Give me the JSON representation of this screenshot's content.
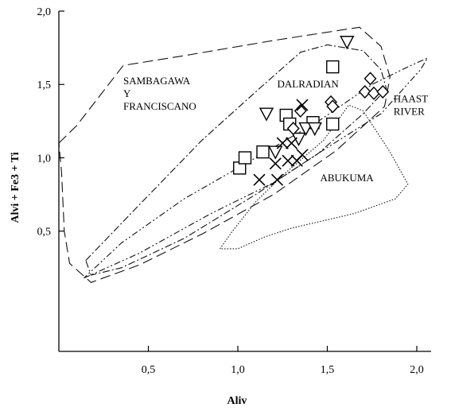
{
  "chart_data": {
    "type": "scatter",
    "xlabel": "Aliv",
    "ylabel": "Alvi + Fe3 + Ti",
    "xlim": [
      0,
      2.08
    ],
    "ylim": [
      -0.32,
      2.0
    ],
    "grid": false,
    "x_ticks": [
      {
        "value": 0.5,
        "label": "0,5"
      },
      {
        "value": 1.0,
        "label": "1,0"
      },
      {
        "value": 1.5,
        "label": "1,5"
      },
      {
        "value": 2.0,
        "label": "2,0"
      }
    ],
    "y_ticks": [
      {
        "value": 0.5,
        "label": "0,5"
      },
      {
        "value": 1.0,
        "label": "1,0"
      },
      {
        "value": 1.5,
        "label": "1,5"
      },
      {
        "value": 2.0,
        "label": "2,0"
      }
    ],
    "regions": [
      {
        "label_lines": [
          "SAMBAGAWA",
          "Y",
          "FRANCISCANO"
        ],
        "label_at": [
          0.36,
          1.5
        ],
        "dash": "13,6",
        "points": [
          [
            0,
            1.1
          ],
          [
            0.1,
            1.22
          ],
          [
            0.36,
            1.63
          ],
          [
            0.72,
            1.7
          ],
          [
            1.2,
            1.8
          ],
          [
            1.68,
            1.89
          ],
          [
            1.8,
            1.76
          ],
          [
            1.85,
            1.55
          ],
          [
            1.82,
            1.35
          ],
          [
            1.55,
            1.05
          ],
          [
            1.2,
            0.75
          ],
          [
            0.8,
            0.48
          ],
          [
            0.45,
            0.27
          ],
          [
            0.18,
            0.15
          ],
          [
            0.06,
            0.28
          ],
          [
            0.03,
            0.5
          ],
          [
            0.015,
            0.9
          ],
          [
            0,
            1.1
          ]
        ]
      },
      {
        "label_lines": [
          "DALRADIAN"
        ],
        "label_at": [
          1.22,
          1.48
        ],
        "dash": "9,3,2,3",
        "points": [
          [
            0.15,
            0.3
          ],
          [
            0.45,
            0.68
          ],
          [
            0.8,
            1.12
          ],
          [
            1.1,
            1.45
          ],
          [
            1.35,
            1.72
          ],
          [
            1.5,
            1.77
          ],
          [
            1.7,
            1.73
          ],
          [
            1.8,
            1.6
          ],
          [
            1.83,
            1.47
          ],
          [
            1.7,
            1.3
          ],
          [
            1.45,
            1.03
          ],
          [
            1.1,
            0.75
          ],
          [
            0.7,
            0.45
          ],
          [
            0.35,
            0.25
          ],
          [
            0.18,
            0.2
          ],
          [
            0.15,
            0.3
          ]
        ]
      },
      {
        "label_lines": [
          "HAAST",
          "RIVER"
        ],
        "label_at": [
          1.87,
          1.38
        ],
        "dash": "8,3,2,3,2,3",
        "points": [
          [
            0.14,
            0.18
          ],
          [
            0.45,
            0.35
          ],
          [
            0.85,
            0.62
          ],
          [
            1.2,
            0.83
          ],
          [
            1.5,
            1.07
          ],
          [
            1.8,
            1.3
          ],
          [
            2.02,
            1.6
          ],
          [
            2.06,
            1.68
          ],
          [
            1.95,
            1.62
          ],
          [
            1.75,
            1.5
          ],
          [
            1.45,
            1.25
          ],
          [
            1.1,
            1.0
          ],
          [
            0.7,
            0.72
          ],
          [
            0.35,
            0.42
          ],
          [
            0.14,
            0.18
          ]
        ]
      },
      {
        "label_lines": [
          "ABUKUMA"
        ],
        "label_at": [
          1.46,
          0.84
        ],
        "dash": "1.5,2",
        "points": [
          [
            0.9,
            0.38
          ],
          [
            0.97,
            0.5
          ],
          [
            1.1,
            0.7
          ],
          [
            1.25,
            0.88
          ],
          [
            1.48,
            1.12
          ],
          [
            1.62,
            1.36
          ],
          [
            1.7,
            1.32
          ],
          [
            1.85,
            1.04
          ],
          [
            1.95,
            0.82
          ],
          [
            1.88,
            0.72
          ],
          [
            1.65,
            0.62
          ],
          [
            1.3,
            0.52
          ],
          [
            1.15,
            0.46
          ],
          [
            1.0,
            0.38
          ],
          [
            0.9,
            0.38
          ]
        ]
      }
    ],
    "series": [
      {
        "marker": "square",
        "points": [
          [
            1.53,
            1.62
          ],
          [
            1.01,
            0.93
          ],
          [
            1.04,
            1.0
          ],
          [
            1.14,
            1.04
          ],
          [
            1.27,
            1.29
          ],
          [
            1.29,
            1.23
          ],
          [
            1.42,
            1.24
          ],
          [
            1.53,
            1.23
          ]
        ]
      },
      {
        "marker": "triangle-down",
        "points": [
          [
            1.61,
            1.79
          ],
          [
            1.16,
            1.3
          ],
          [
            1.21,
            1.04
          ],
          [
            1.38,
            1.2
          ],
          [
            1.43,
            1.2
          ],
          [
            1.34,
            1.13
          ]
        ]
      },
      {
        "marker": "diamond",
        "points": [
          [
            1.74,
            1.54
          ],
          [
            1.52,
            1.38
          ],
          [
            1.53,
            1.35
          ],
          [
            1.35,
            1.32
          ],
          [
            1.31,
            1.2
          ],
          [
            1.71,
            1.45
          ],
          [
            1.76,
            1.44
          ],
          [
            1.81,
            1.45
          ]
        ]
      },
      {
        "marker": "x",
        "points": [
          [
            1.36,
            1.36
          ],
          [
            1.25,
            1.1
          ],
          [
            1.3,
            1.1
          ],
          [
            1.28,
            0.98
          ],
          [
            1.33,
            0.98
          ],
          [
            1.36,
            1.02
          ],
          [
            1.21,
            0.96
          ],
          [
            1.12,
            0.85
          ],
          [
            1.22,
            0.85
          ]
        ]
      }
    ]
  }
}
